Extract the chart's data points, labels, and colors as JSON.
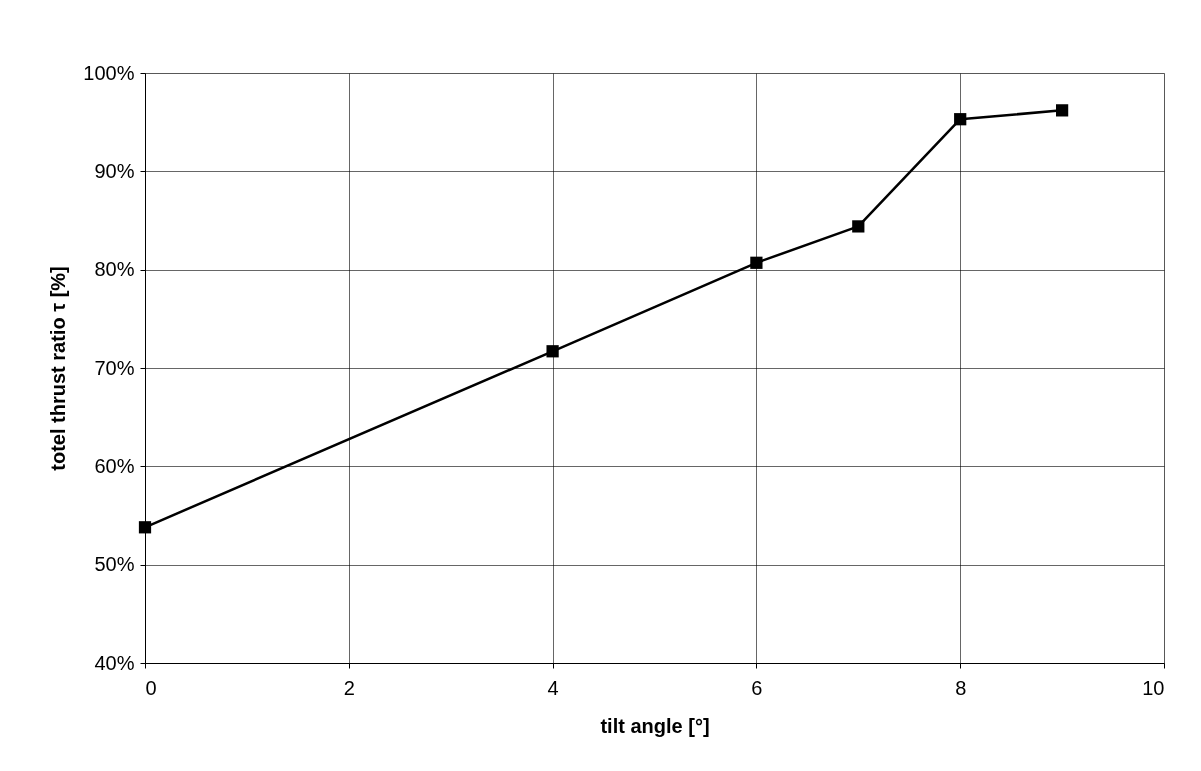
{
  "chart_data": {
    "type": "line",
    "xlabel": "tilt angle [°]",
    "ylabel": "totel thrust ratio τ [%]",
    "x": [
      0,
      4,
      6,
      7,
      8,
      9
    ],
    "series": [
      {
        "color": "#000000",
        "values": [
          53.8,
          71.7,
          80.7,
          84.4,
          95.3,
          96.2
        ]
      }
    ],
    "xlim": [
      0,
      10
    ],
    "xticks": [
      0,
      2,
      4,
      6,
      8,
      10
    ],
    "ylim": [
      40,
      100
    ],
    "yticks": [
      {
        "value": 40,
        "label": "40%"
      },
      {
        "value": 50,
        "label": "50%"
      },
      {
        "value": 60,
        "label": "60%"
      },
      {
        "value": 70,
        "label": "70%"
      },
      {
        "value": 80,
        "label": "80%"
      },
      {
        "value": 90,
        "label": "90%"
      },
      {
        "value": 100,
        "label": "100%"
      }
    ],
    "grid": true,
    "marker": "square",
    "line_style": "solid"
  }
}
